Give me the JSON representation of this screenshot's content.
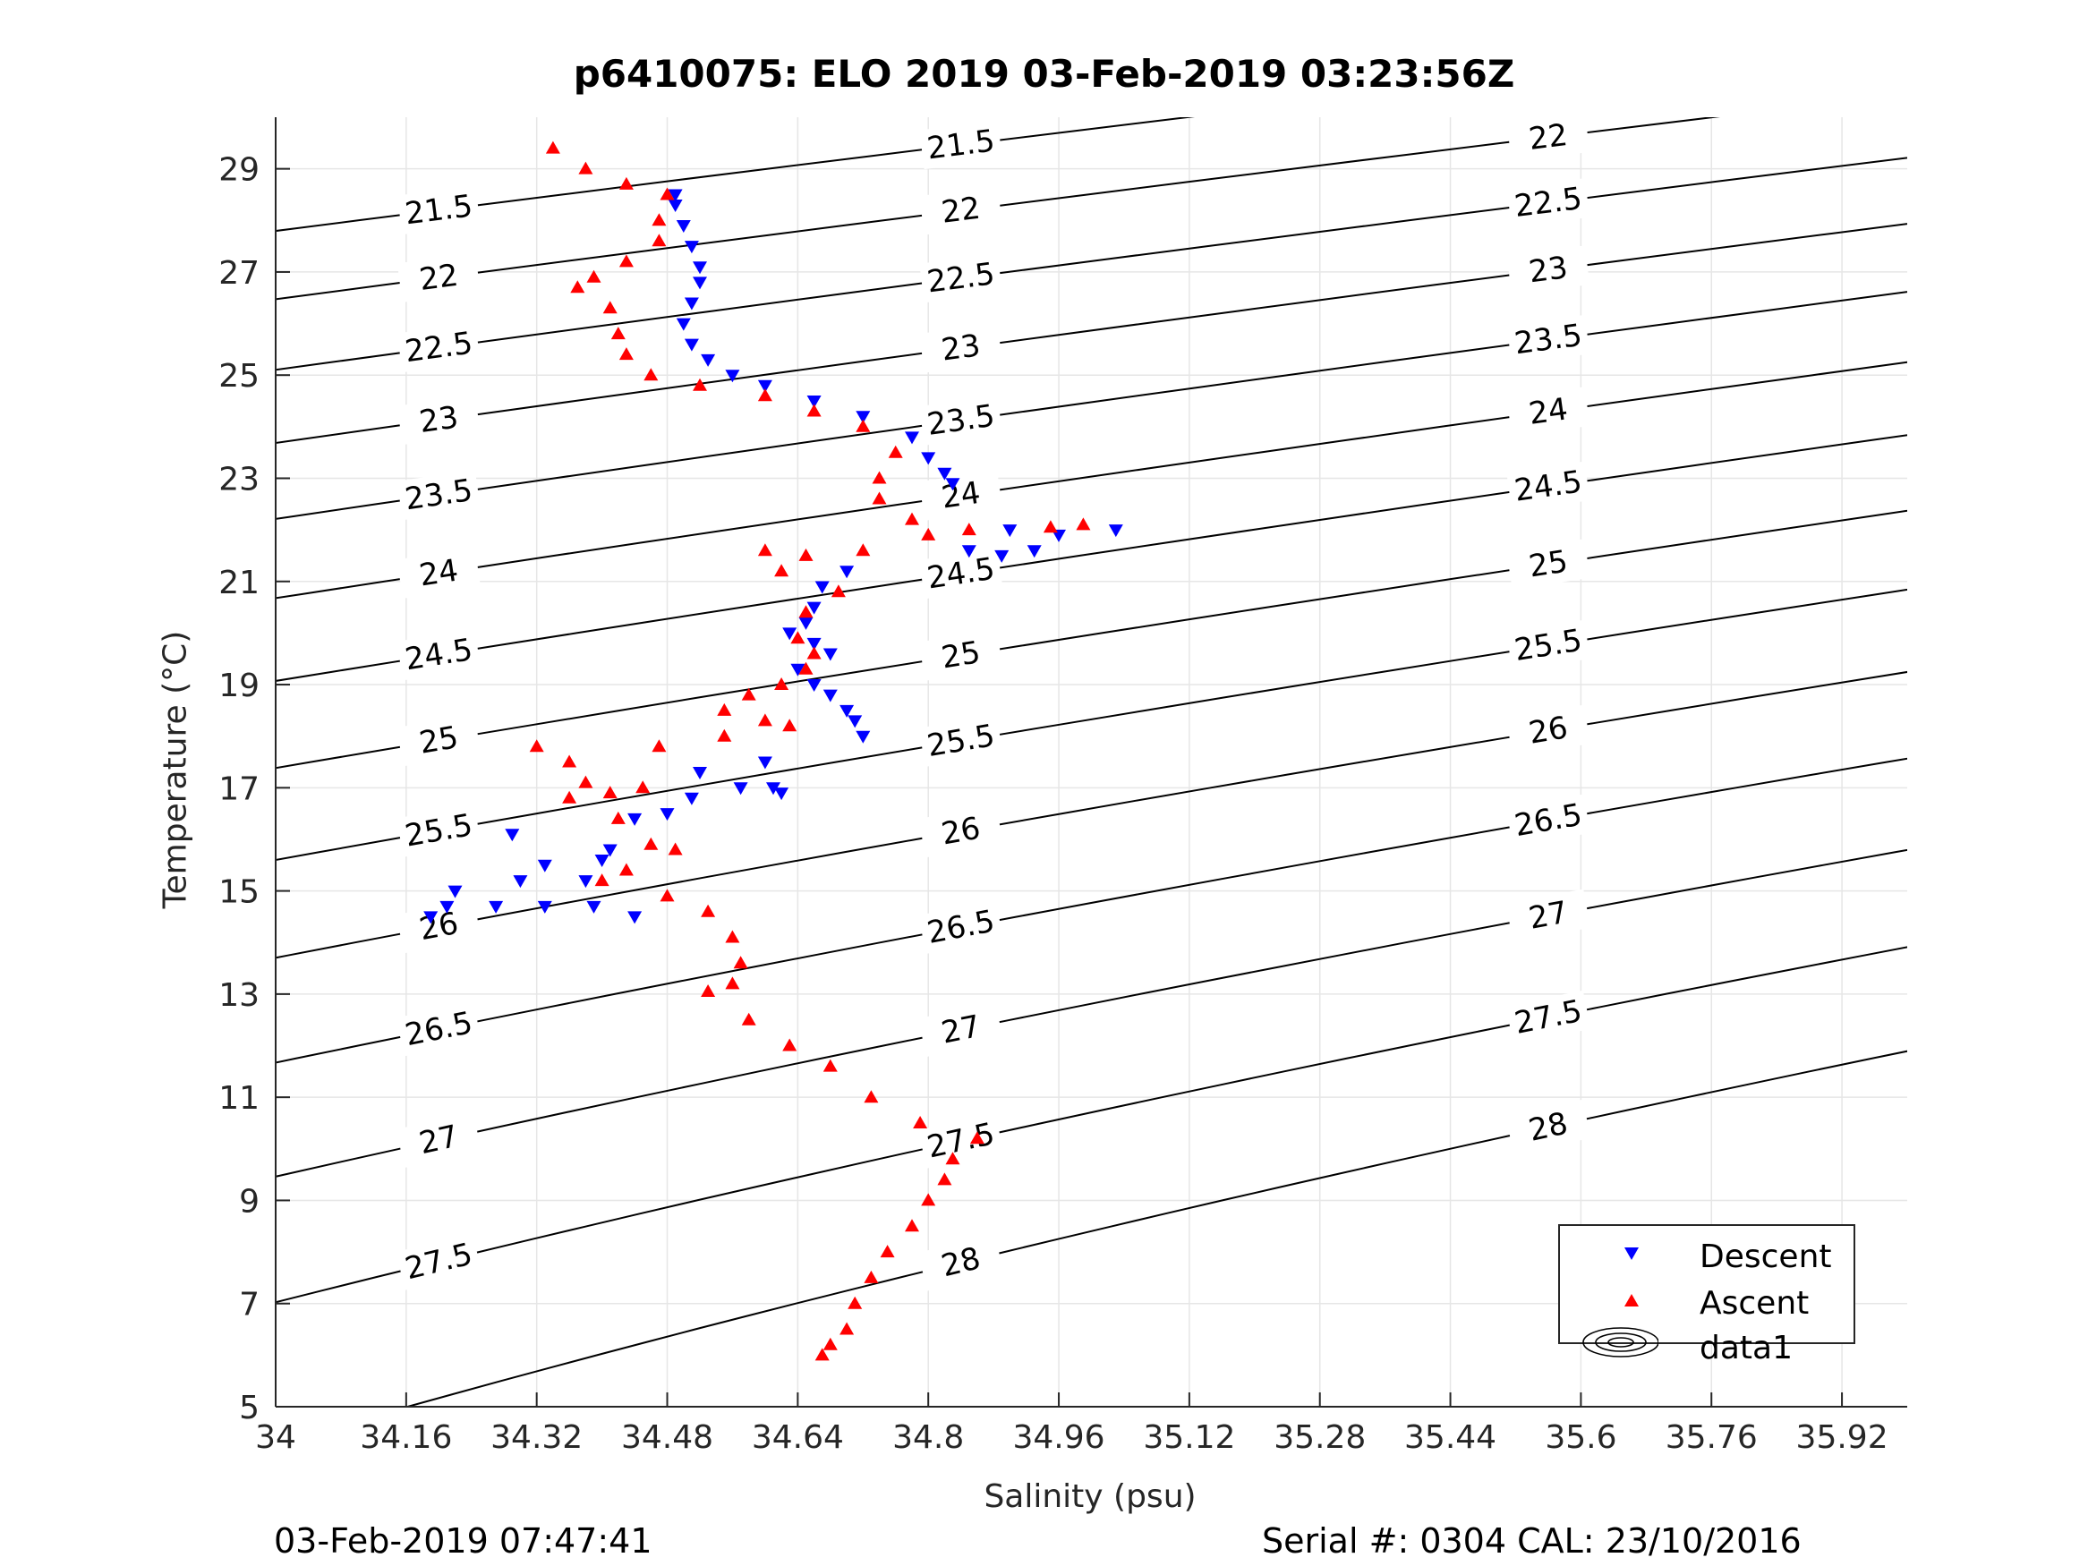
{
  "chart_data": {
    "type": "scatter",
    "title": "p6410075: ELO 2019 03-Feb-2019 03:23:56Z",
    "xlabel": "Salinity (psu)",
    "ylabel": "Temperature (°C)",
    "xlim": [
      34,
      36.0
    ],
    "ylim": [
      5,
      30
    ],
    "xticks": [
      34,
      34.16,
      34.32,
      34.48,
      34.64,
      34.8,
      34.96,
      35.12,
      35.28,
      35.44,
      35.6,
      35.76,
      35.92
    ],
    "xtick_labels": [
      "34",
      "34.16",
      "34.32",
      "34.48",
      "34.64",
      "34.8",
      "34.96",
      "35.12",
      "35.28",
      "35.44",
      "35.6",
      "35.76",
      "35.92"
    ],
    "yticks": [
      5,
      7,
      9,
      11,
      13,
      15,
      17,
      19,
      21,
      23,
      25,
      27,
      29
    ],
    "ytick_labels": [
      "5",
      "7",
      "9",
      "11",
      "13",
      "15",
      "17",
      "19",
      "21",
      "23",
      "25",
      "27",
      "29"
    ],
    "grid": true,
    "legend_position": "bottom-right",
    "contours": {
      "name": "data1",
      "levels": [
        21.5,
        22,
        22.5,
        23,
        23.5,
        24,
        24.5,
        25,
        25.5,
        26,
        26.5,
        27,
        27.5,
        28
      ]
    },
    "series": [
      {
        "name": "Descent",
        "marker": "triangle-down",
        "color": "#0000ff",
        "points": [
          [
            34.49,
            28.5
          ],
          [
            34.49,
            28.3
          ],
          [
            34.5,
            27.9
          ],
          [
            34.51,
            27.5
          ],
          [
            34.52,
            27.1
          ],
          [
            34.52,
            26.8
          ],
          [
            34.51,
            26.4
          ],
          [
            34.5,
            26.0
          ],
          [
            34.51,
            25.6
          ],
          [
            34.53,
            25.3
          ],
          [
            34.56,
            25.0
          ],
          [
            34.6,
            24.8
          ],
          [
            34.66,
            24.5
          ],
          [
            34.72,
            24.2
          ],
          [
            34.78,
            23.8
          ],
          [
            34.8,
            23.4
          ],
          [
            34.82,
            23.1
          ],
          [
            34.83,
            22.9
          ],
          [
            34.9,
            22.0
          ],
          [
            34.96,
            21.9
          ],
          [
            35.03,
            22.0
          ],
          [
            34.85,
            21.6
          ],
          [
            34.89,
            21.5
          ],
          [
            34.93,
            21.6
          ],
          [
            34.7,
            21.2
          ],
          [
            34.67,
            20.9
          ],
          [
            34.66,
            20.5
          ],
          [
            34.65,
            20.2
          ],
          [
            34.63,
            20.0
          ],
          [
            34.66,
            19.8
          ],
          [
            34.68,
            19.6
          ],
          [
            34.64,
            19.3
          ],
          [
            34.66,
            19.0
          ],
          [
            34.68,
            18.8
          ],
          [
            34.7,
            18.5
          ],
          [
            34.71,
            18.3
          ],
          [
            34.72,
            18.0
          ],
          [
            34.6,
            17.5
          ],
          [
            34.61,
            17.0
          ],
          [
            34.62,
            16.9
          ],
          [
            34.57,
            17.0
          ],
          [
            34.52,
            17.3
          ],
          [
            34.51,
            16.8
          ],
          [
            34.48,
            16.5
          ],
          [
            34.44,
            16.4
          ],
          [
            34.41,
            15.8
          ],
          [
            34.4,
            15.6
          ],
          [
            34.38,
            15.2
          ],
          [
            34.33,
            15.5
          ],
          [
            34.3,
            15.2
          ],
          [
            34.29,
            16.1
          ],
          [
            34.27,
            14.7
          ],
          [
            34.33,
            14.7
          ],
          [
            34.39,
            14.7
          ],
          [
            34.44,
            14.5
          ],
          [
            34.22,
            15.0
          ],
          [
            34.19,
            14.5
          ],
          [
            34.21,
            14.7
          ]
        ]
      },
      {
        "name": "Ascent",
        "marker": "triangle-up",
        "color": "#ff0000",
        "points": [
          [
            34.34,
            29.4
          ],
          [
            34.38,
            29.0
          ],
          [
            34.43,
            28.7
          ],
          [
            34.48,
            28.5
          ],
          [
            34.47,
            28.0
          ],
          [
            34.47,
            27.6
          ],
          [
            34.43,
            27.2
          ],
          [
            34.39,
            26.9
          ],
          [
            34.37,
            26.7
          ],
          [
            34.41,
            26.3
          ],
          [
            34.42,
            25.8
          ],
          [
            34.43,
            25.4
          ],
          [
            34.46,
            25.0
          ],
          [
            34.52,
            24.8
          ],
          [
            34.6,
            24.6
          ],
          [
            34.66,
            24.3
          ],
          [
            34.72,
            24.0
          ],
          [
            34.76,
            23.5
          ],
          [
            34.74,
            23.0
          ],
          [
            34.74,
            22.6
          ],
          [
            34.78,
            22.2
          ],
          [
            34.85,
            22.0
          ],
          [
            34.95,
            22.05
          ],
          [
            34.99,
            22.1
          ],
          [
            34.8,
            21.9
          ],
          [
            34.72,
            21.6
          ],
          [
            34.65,
            21.5
          ],
          [
            34.6,
            21.6
          ],
          [
            34.62,
            21.2
          ],
          [
            34.69,
            20.8
          ],
          [
            34.65,
            20.4
          ],
          [
            34.64,
            19.9
          ],
          [
            34.66,
            19.6
          ],
          [
            34.65,
            19.3
          ],
          [
            34.62,
            19.0
          ],
          [
            34.58,
            18.8
          ],
          [
            34.55,
            18.5
          ],
          [
            34.6,
            18.3
          ],
          [
            34.63,
            18.2
          ],
          [
            34.55,
            18.0
          ],
          [
            34.47,
            17.8
          ],
          [
            34.32,
            17.8
          ],
          [
            34.36,
            17.5
          ],
          [
            34.38,
            17.1
          ],
          [
            34.41,
            16.9
          ],
          [
            34.45,
            17.0
          ],
          [
            34.36,
            16.8
          ],
          [
            34.42,
            16.4
          ],
          [
            34.46,
            15.9
          ],
          [
            34.49,
            15.8
          ],
          [
            34.43,
            15.4
          ],
          [
            34.4,
            15.2
          ],
          [
            34.48,
            14.9
          ],
          [
            34.53,
            14.6
          ],
          [
            34.56,
            14.1
          ],
          [
            34.57,
            13.6
          ],
          [
            34.56,
            13.2
          ],
          [
            34.53,
            13.05
          ],
          [
            34.58,
            12.5
          ],
          [
            34.63,
            12.0
          ],
          [
            34.68,
            11.6
          ],
          [
            34.73,
            11.0
          ],
          [
            34.79,
            10.5
          ],
          [
            34.86,
            10.2
          ],
          [
            34.83,
            9.8
          ],
          [
            34.82,
            9.4
          ],
          [
            34.8,
            9.0
          ],
          [
            34.78,
            8.5
          ],
          [
            34.75,
            8.0
          ],
          [
            34.73,
            7.5
          ],
          [
            34.71,
            7.0
          ],
          [
            34.7,
            6.5
          ],
          [
            34.68,
            6.2
          ],
          [
            34.67,
            6.0
          ]
        ]
      }
    ]
  },
  "footer": {
    "timestamp": "03-Feb-2019 07:47:41",
    "serial": "Serial #: 0304  CAL: 23/10/2016"
  }
}
